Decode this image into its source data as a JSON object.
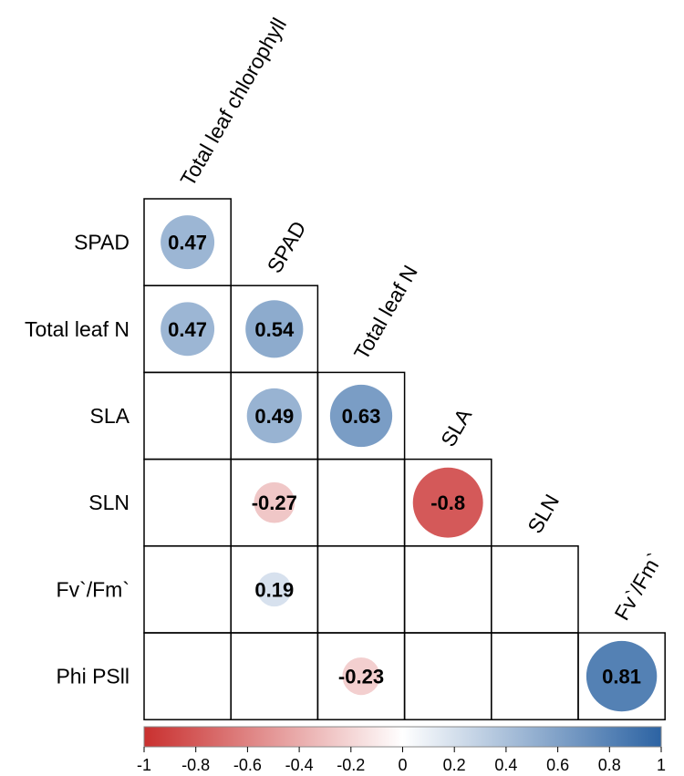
{
  "chart_data": {
    "type": "heatmap",
    "subtype": "correlation-matrix-lower-triangle",
    "variables": [
      "Total leaf chlorophyll",
      "SPAD",
      "Total leaf N",
      "SLA",
      "SLN",
      "Fv`/Fm`",
      "Phi PSII"
    ],
    "row_labels": [
      "SPAD",
      "Total leaf N",
      "SLA",
      "SLN",
      "Fv`/Fm`",
      "Phi PSll"
    ],
    "column_labels": [
      "Total leaf chlorophyll",
      "SPAD",
      "Total leaf N",
      "SLA",
      "SLN",
      "Fv`/Fm`"
    ],
    "cells": [
      {
        "row": 0,
        "col": 0,
        "value": 0.47,
        "label": "0.47"
      },
      {
        "row": 1,
        "col": 0,
        "value": 0.47,
        "label": "0.47"
      },
      {
        "row": 1,
        "col": 1,
        "value": 0.54,
        "label": "0.54"
      },
      {
        "row": 2,
        "col": 1,
        "value": 0.49,
        "label": "0.49"
      },
      {
        "row": 2,
        "col": 2,
        "value": 0.63,
        "label": "0.63"
      },
      {
        "row": 3,
        "col": 1,
        "value": -0.27,
        "label": "-0.27"
      },
      {
        "row": 3,
        "col": 3,
        "value": -0.8,
        "label": "-0.8"
      },
      {
        "row": 4,
        "col": 1,
        "value": 0.19,
        "label": "0.19"
      },
      {
        "row": 5,
        "col": 2,
        "value": -0.23,
        "label": "-0.23"
      },
      {
        "row": 5,
        "col": 5,
        "value": 0.81,
        "label": "0.81"
      }
    ],
    "color_scale": {
      "range": [
        -1,
        1
      ],
      "ticks": [
        "-1",
        "-0.8",
        "-0.6",
        "-0.4",
        "-0.2",
        "0",
        "0.2",
        "0.4",
        "0.6",
        "0.8",
        "1"
      ],
      "negative_color": "#c9302f",
      "zero_color": "#ffffff",
      "positive_color": "#2c63a3"
    },
    "legend_placement": "bottom"
  }
}
